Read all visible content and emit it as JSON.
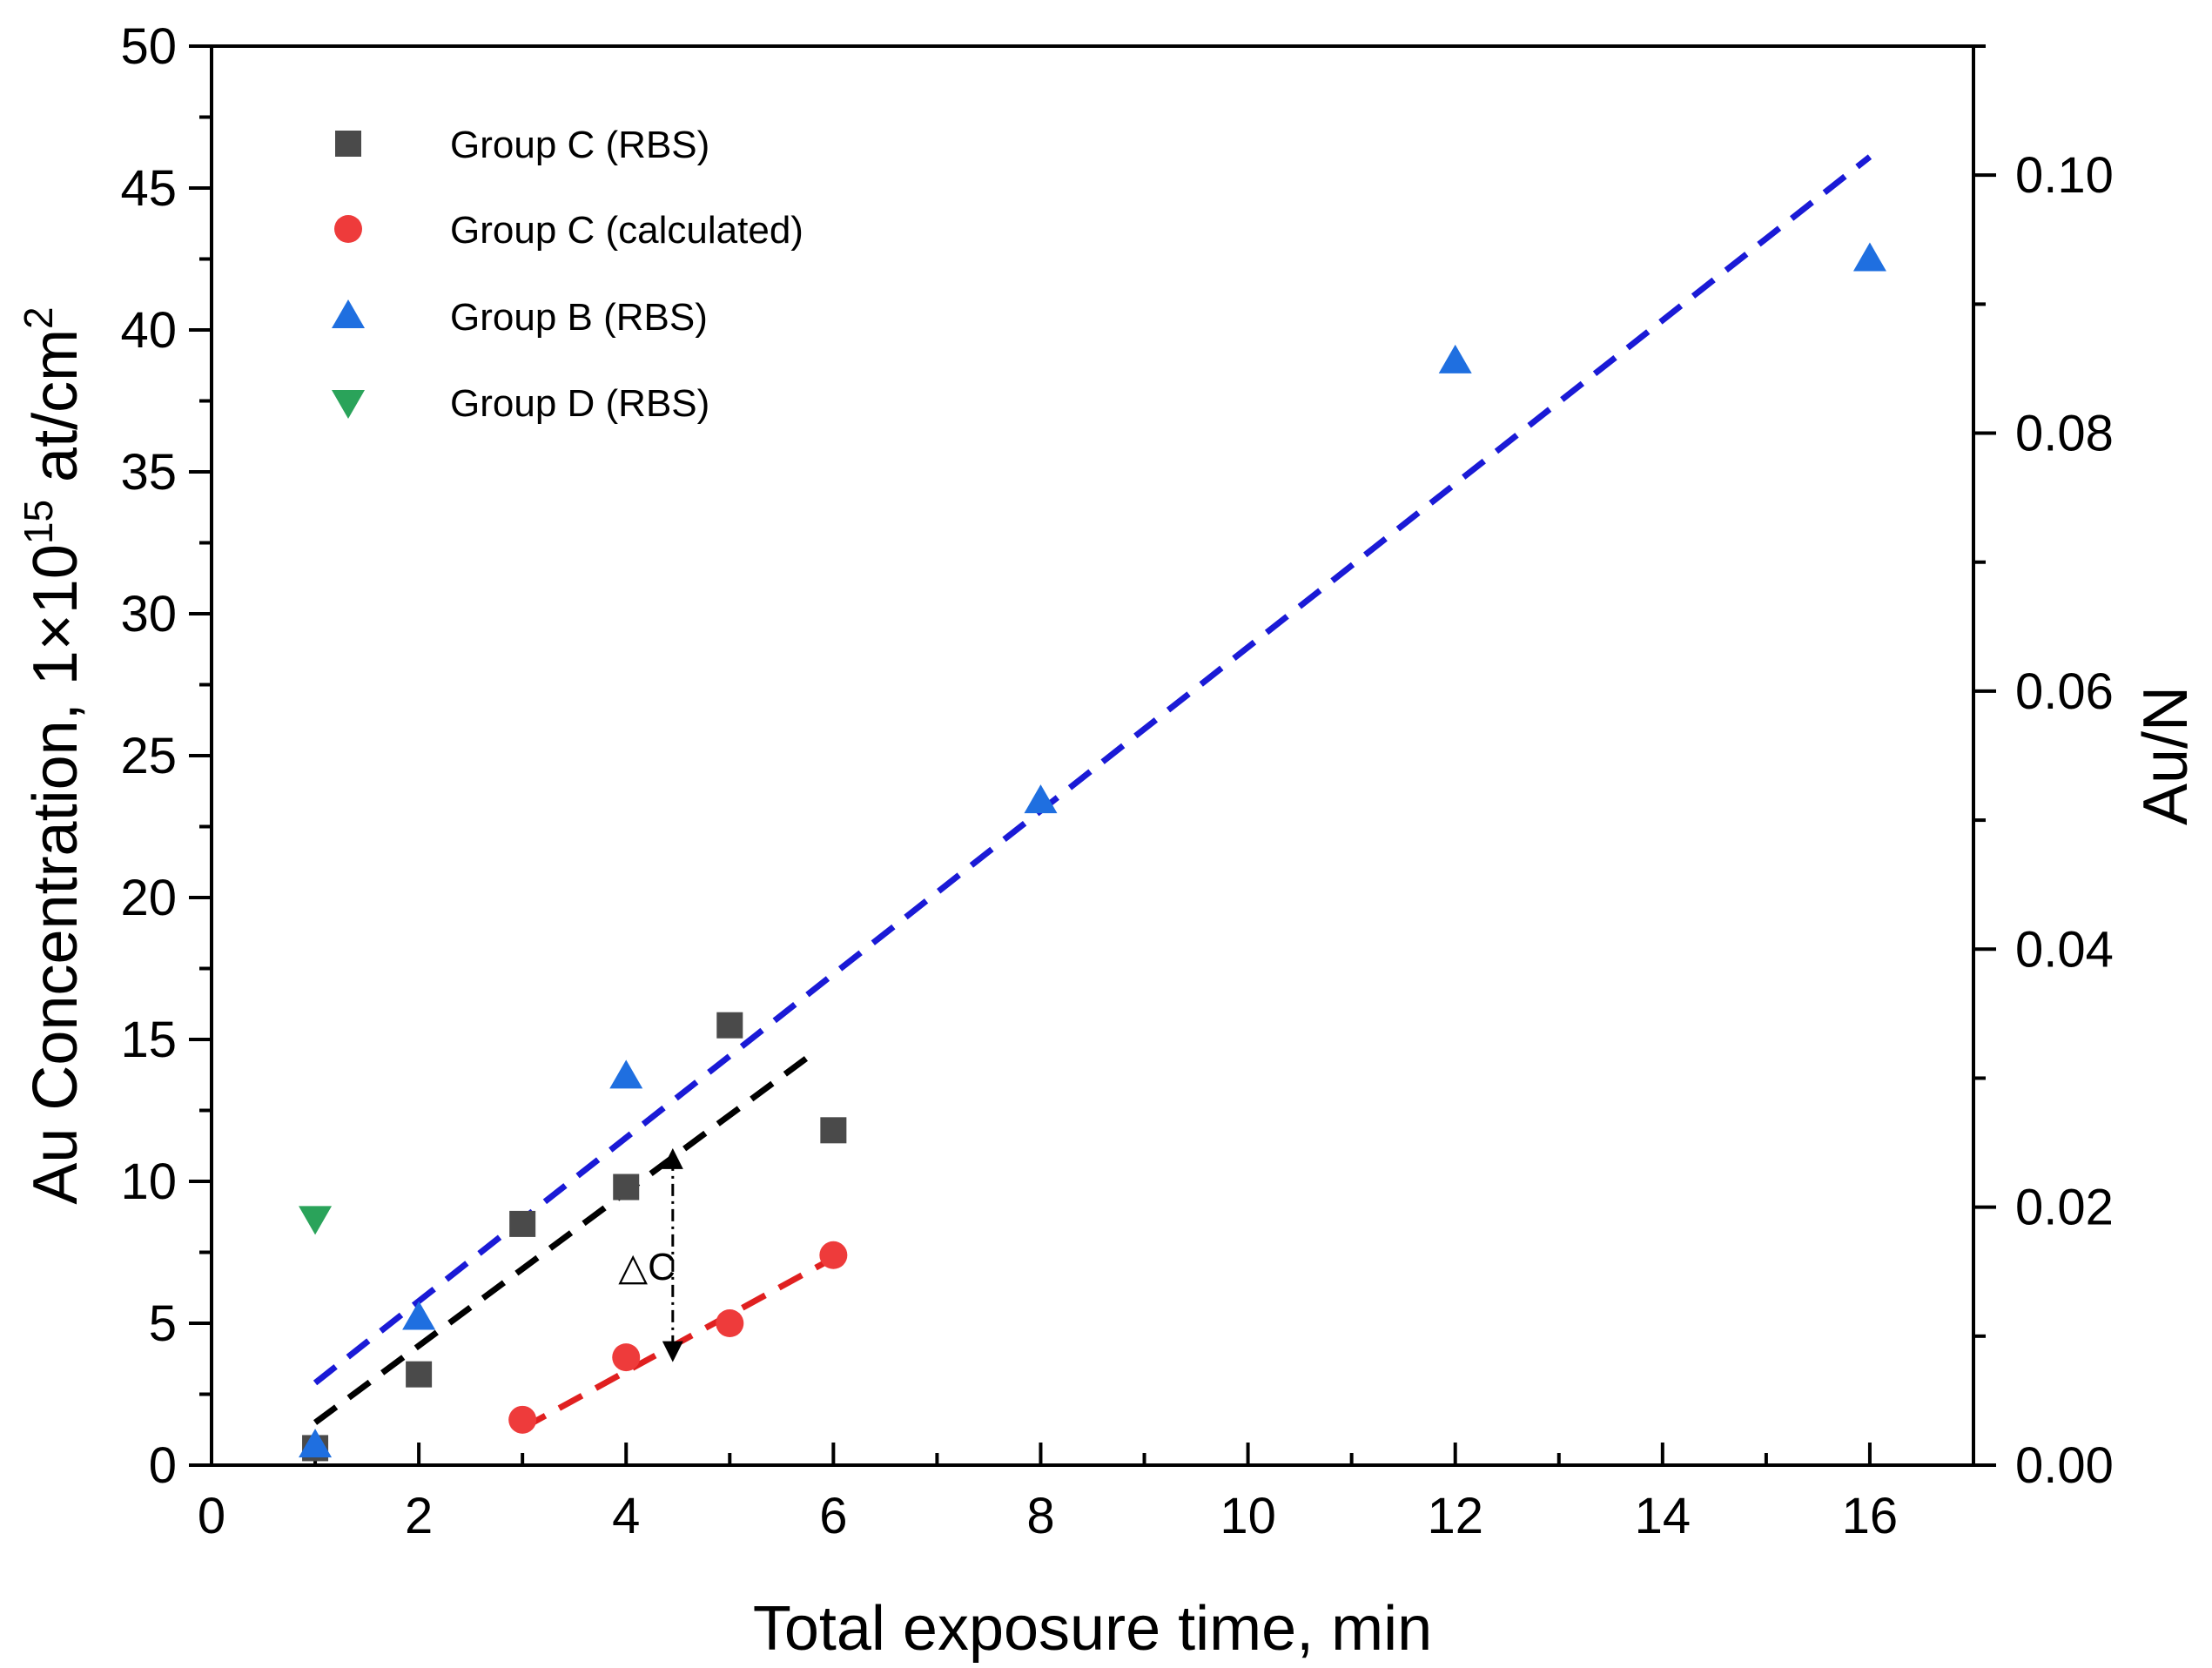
{
  "chart_data": {
    "type": "scatter",
    "title": "",
    "xlabel": "Total exposure time, min",
    "ylabel_left": {
      "main": "Au Concentration, 1×10",
      "sup1": "15",
      "mid": " at/cm",
      "sup2": "2"
    },
    "ylabel_right": "Au/N",
    "xlim": [
      0,
      17
    ],
    "ylim_left": [
      0,
      50
    ],
    "ylim_right": [
      0,
      0.11
    ],
    "x_ticks": [
      0,
      2,
      4,
      6,
      8,
      10,
      12,
      14,
      16
    ],
    "y_ticks_left": [
      0,
      5,
      10,
      15,
      20,
      25,
      30,
      35,
      40,
      45,
      50
    ],
    "y_ticks_right": [
      "0.00",
      "0.02",
      "0.04",
      "0.06",
      "0.08",
      "0.10"
    ],
    "legend_position": "top-left",
    "series": [
      {
        "name": "Group C (RBS)",
        "marker": "square",
        "color": "#4a4a4a",
        "x": [
          1,
          2,
          3,
          4,
          5,
          6
        ],
        "y": [
          0.6,
          3.2,
          8.5,
          9.8,
          15.5,
          11.8
        ]
      },
      {
        "name": "Group C (calculated)",
        "marker": "circle",
        "color": "#ee3b3b",
        "x": [
          3,
          4,
          5,
          6
        ],
        "y": [
          1.6,
          3.8,
          5.0,
          7.4
        ]
      },
      {
        "name": "Group B (RBS)",
        "marker": "triangle-up",
        "color": "#1f6fe0",
        "x": [
          1,
          2,
          4,
          8,
          12,
          16
        ],
        "y": [
          0.7,
          5.2,
          13.7,
          23.4,
          38.9,
          42.5
        ]
      },
      {
        "name": "Group D (RBS)",
        "marker": "triangle-down",
        "color": "#2aa35a",
        "x": [
          1
        ],
        "y": [
          8.7
        ]
      }
    ],
    "fit_lines": [
      {
        "name": "Group C (RBS) fit",
        "color": "#000000",
        "x": [
          1,
          5.8
        ],
        "y": [
          1.5,
          14.5
        ]
      },
      {
        "name": "Group C (calculated) fit",
        "color": "#e02020",
        "x": [
          3,
          6
        ],
        "y": [
          1.3,
          7.3
        ]
      },
      {
        "name": "Group B (RBS) fit",
        "color": "#1a1ad6",
        "x": [
          1,
          16
        ],
        "y": [
          2.9,
          46.1
        ]
      }
    ],
    "annotations": [
      {
        "text": "△C",
        "x_label": 4.2,
        "y_label": 7.0,
        "arrow_x": 4.45,
        "arrow_y": [
          10.8,
          4.0
        ]
      }
    ]
  }
}
